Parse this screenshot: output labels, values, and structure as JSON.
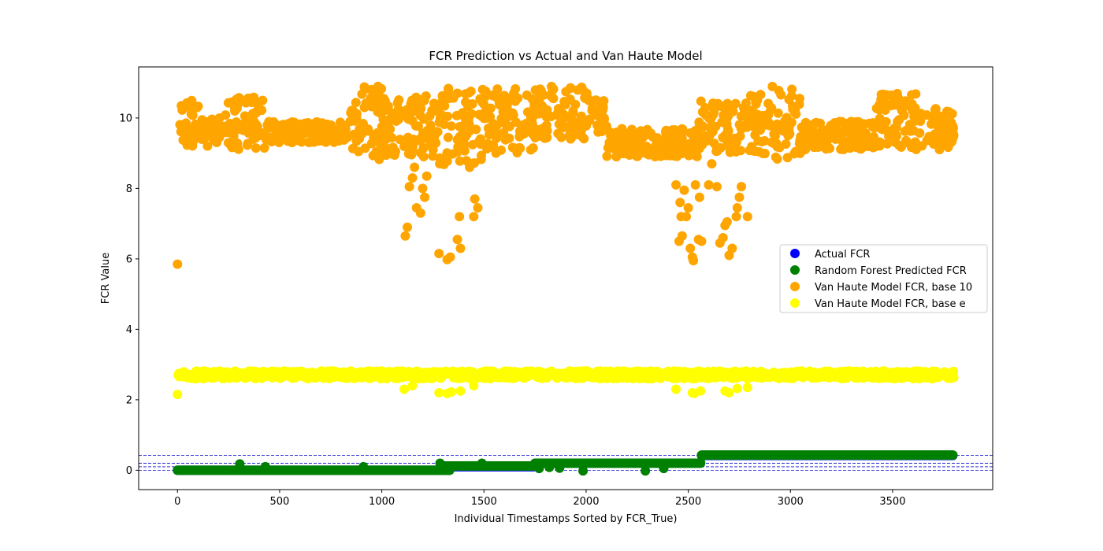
{
  "chart_data": {
    "type": "scatter",
    "title": "FCR Prediction vs Actual and Van Haute Model",
    "xlabel": "Individual Timestamps Sorted by FCR_True)",
    "ylabel": "FCR Value",
    "xlim": [
      -190,
      3990
    ],
    "ylim": [
      -0.55,
      11.45
    ],
    "xticks": [
      0,
      500,
      1000,
      1500,
      2000,
      2500,
      3000,
      3500
    ],
    "yticks": [
      0,
      2,
      4,
      6,
      8,
      10
    ],
    "grid": false,
    "legend_position": "center-right",
    "reference_lines": [
      0.0,
      0.1,
      0.2,
      0.42
    ],
    "reference_line_color": "#0000cc",
    "series": [
      {
        "name": "Actual FCR",
        "color": "#0000ff",
        "segments": [
          {
            "x0": 0,
            "x1": 1335,
            "y": 0.0
          },
          {
            "x0": 1290,
            "x1": 1750,
            "y": 0.1
          },
          {
            "x0": 1750,
            "x1": 2565,
            "y": 0.2
          },
          {
            "x0": 2565,
            "x1": 3800,
            "y": 0.42
          }
        ],
        "outliers": []
      },
      {
        "name": "Random Forest Predicted FCR",
        "color": "#008000",
        "segments": [
          {
            "x0": 0,
            "x1": 1335,
            "y": 0.0
          },
          {
            "x0": 1290,
            "x1": 1750,
            "y": 0.12
          },
          {
            "x0": 1750,
            "x1": 2565,
            "y": 0.2
          },
          {
            "x0": 2565,
            "x1": 3800,
            "y": 0.43
          }
        ],
        "outliers": [
          {
            "x": 305,
            "y": 0.18
          },
          {
            "x": 430,
            "y": 0.1
          },
          {
            "x": 910,
            "y": 0.1
          },
          {
            "x": 1285,
            "y": 0.2
          },
          {
            "x": 1490,
            "y": 0.2
          },
          {
            "x": 1770,
            "y": 0.05
          },
          {
            "x": 1820,
            "y": 0.08
          },
          {
            "x": 1870,
            "y": 0.06
          },
          {
            "x": 1985,
            "y": -0.02
          },
          {
            "x": 2290,
            "y": -0.02
          },
          {
            "x": 2380,
            "y": 0.05
          },
          {
            "x": 2560,
            "y": 0.22
          }
        ]
      },
      {
        "name": "Van Haute Model FCR, base 10",
        "color": "#ffa500",
        "bands": [
          {
            "x0": 0,
            "x1": 110,
            "lo": 9.2,
            "hi": 10.5
          },
          {
            "x0": 110,
            "x1": 230,
            "lo": 9.2,
            "hi": 10.0
          },
          {
            "x0": 230,
            "x1": 430,
            "lo": 9.1,
            "hi": 10.6
          },
          {
            "x0": 430,
            "x1": 830,
            "lo": 9.3,
            "hi": 9.9
          },
          {
            "x0": 830,
            "x1": 1000,
            "lo": 8.8,
            "hi": 10.9
          },
          {
            "x0": 1000,
            "x1": 1280,
            "lo": 8.9,
            "hi": 10.7
          },
          {
            "x0": 1280,
            "x1": 1500,
            "lo": 8.6,
            "hi": 10.9
          },
          {
            "x0": 1500,
            "x1": 1760,
            "lo": 9.0,
            "hi": 10.9
          },
          {
            "x0": 1760,
            "x1": 2020,
            "lo": 9.4,
            "hi": 10.9
          },
          {
            "x0": 2020,
            "x1": 2100,
            "lo": 9.6,
            "hi": 10.6
          },
          {
            "x0": 2100,
            "x1": 2550,
            "lo": 8.9,
            "hi": 9.7
          },
          {
            "x0": 2550,
            "x1": 2800,
            "lo": 9.0,
            "hi": 10.5
          },
          {
            "x0": 2800,
            "x1": 3050,
            "lo": 8.8,
            "hi": 10.9
          },
          {
            "x0": 3050,
            "x1": 3420,
            "lo": 9.1,
            "hi": 9.9
          },
          {
            "x0": 3420,
            "x1": 3620,
            "lo": 9.1,
            "hi": 10.7
          },
          {
            "x0": 3620,
            "x1": 3800,
            "lo": 9.1,
            "hi": 10.3
          }
        ],
        "outliers": [
          {
            "x": 0,
            "y": 5.85
          },
          {
            "x": 1115,
            "y": 6.65
          },
          {
            "x": 1125,
            "y": 6.9
          },
          {
            "x": 1135,
            "y": 8.05
          },
          {
            "x": 1150,
            "y": 8.3
          },
          {
            "x": 1160,
            "y": 8.6
          },
          {
            "x": 1170,
            "y": 7.45
          },
          {
            "x": 1190,
            "y": 7.3
          },
          {
            "x": 1200,
            "y": 8.0
          },
          {
            "x": 1210,
            "y": 7.75
          },
          {
            "x": 1220,
            "y": 8.35
          },
          {
            "x": 1280,
            "y": 6.15
          },
          {
            "x": 1320,
            "y": 5.98
          },
          {
            "x": 1335,
            "y": 6.05
          },
          {
            "x": 1370,
            "y": 6.55
          },
          {
            "x": 1385,
            "y": 6.3
          },
          {
            "x": 1380,
            "y": 7.2
          },
          {
            "x": 1430,
            "y": 8.6
          },
          {
            "x": 1450,
            "y": 7.2
          },
          {
            "x": 1455,
            "y": 7.7
          },
          {
            "x": 1470,
            "y": 7.45
          },
          {
            "x": 2440,
            "y": 8.1
          },
          {
            "x": 2455,
            "y": 6.5
          },
          {
            "x": 2460,
            "y": 7.6
          },
          {
            "x": 2465,
            "y": 7.2
          },
          {
            "x": 2470,
            "y": 6.65
          },
          {
            "x": 2480,
            "y": 7.95
          },
          {
            "x": 2490,
            "y": 7.2
          },
          {
            "x": 2500,
            "y": 7.45
          },
          {
            "x": 2510,
            "y": 6.3
          },
          {
            "x": 2520,
            "y": 6.05
          },
          {
            "x": 2525,
            "y": 5.95
          },
          {
            "x": 2535,
            "y": 8.1
          },
          {
            "x": 2550,
            "y": 6.55
          },
          {
            "x": 2555,
            "y": 7.75
          },
          {
            "x": 2565,
            "y": 6.5
          },
          {
            "x": 2600,
            "y": 8.1
          },
          {
            "x": 2615,
            "y": 8.7
          },
          {
            "x": 2640,
            "y": 8.05
          },
          {
            "x": 2655,
            "y": 6.45
          },
          {
            "x": 2670,
            "y": 6.6
          },
          {
            "x": 2680,
            "y": 6.95
          },
          {
            "x": 2690,
            "y": 7.05
          },
          {
            "x": 2700,
            "y": 6.1
          },
          {
            "x": 2715,
            "y": 6.3
          },
          {
            "x": 2735,
            "y": 7.2
          },
          {
            "x": 2740,
            "y": 7.45
          },
          {
            "x": 2750,
            "y": 7.75
          },
          {
            "x": 2760,
            "y": 8.05
          },
          {
            "x": 2790,
            "y": 7.2
          }
        ]
      },
      {
        "name": "Van Haute Model FCR, base e",
        "color": "#ffff00",
        "bands": [
          {
            "x0": 0,
            "x1": 3800,
            "lo": 2.6,
            "hi": 2.82
          }
        ],
        "outliers": [
          {
            "x": 0,
            "y": 2.15
          },
          {
            "x": 1110,
            "y": 2.3
          },
          {
            "x": 1150,
            "y": 2.4
          },
          {
            "x": 1280,
            "y": 2.2
          },
          {
            "x": 1320,
            "y": 2.18
          },
          {
            "x": 1340,
            "y": 2.22
          },
          {
            "x": 1385,
            "y": 2.25
          },
          {
            "x": 1450,
            "y": 2.4
          },
          {
            "x": 2440,
            "y": 2.3
          },
          {
            "x": 2520,
            "y": 2.2
          },
          {
            "x": 2530,
            "y": 2.18
          },
          {
            "x": 2560,
            "y": 2.25
          },
          {
            "x": 2680,
            "y": 2.25
          },
          {
            "x": 2700,
            "y": 2.2
          },
          {
            "x": 2740,
            "y": 2.32
          },
          {
            "x": 2790,
            "y": 2.35
          }
        ]
      }
    ]
  }
}
